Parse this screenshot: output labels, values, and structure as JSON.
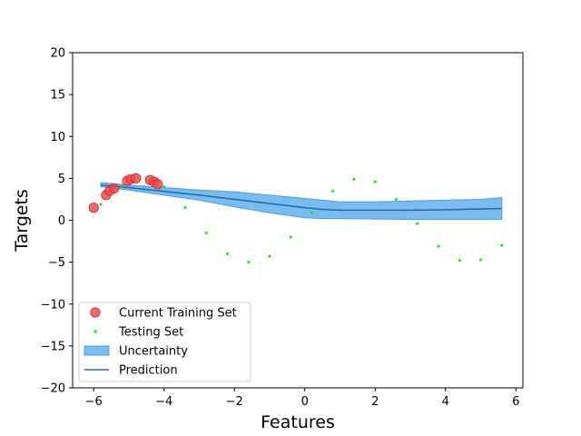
{
  "chart_data": {
    "type": "scatter",
    "xlabel": "Features",
    "ylabel": "Targets",
    "xlim": [
      -6.6,
      6.2
    ],
    "ylim": [
      -20,
      20
    ],
    "xticks": [
      -6,
      -4,
      -2,
      0,
      2,
      4,
      6
    ],
    "yticks": [
      -20,
      -15,
      -10,
      -5,
      0,
      5,
      10,
      15,
      20
    ],
    "xtick_labels": [
      "−6",
      "−4",
      "−2",
      "0",
      "2",
      "4",
      "6"
    ],
    "ytick_labels": [
      "−20",
      "−15",
      "−10",
      "−5",
      "0",
      "5",
      "10",
      "15",
      "20"
    ],
    "grid": false,
    "legend_position": "lower-left",
    "colors": {
      "training": "#e8474b",
      "testing": "#00ee00",
      "uncertainty": "#7bbcf0",
      "uncertainty_edge": "#4a9ee0",
      "prediction": "#1f6fb4"
    },
    "series": [
      {
        "name": "Current Training Set",
        "kind": "scatter",
        "points": [
          {
            "x": -6.0,
            "y": 1.5
          },
          {
            "x": -5.65,
            "y": 3.0
          },
          {
            "x": -5.55,
            "y": 3.5
          },
          {
            "x": -5.42,
            "y": 3.8
          },
          {
            "x": -5.05,
            "y": 4.7
          },
          {
            "x": -4.95,
            "y": 4.9
          },
          {
            "x": -4.8,
            "y": 5.0
          },
          {
            "x": -4.4,
            "y": 4.8
          },
          {
            "x": -4.28,
            "y": 4.6
          },
          {
            "x": -4.18,
            "y": 4.3
          }
        ]
      },
      {
        "name": "Testing Set",
        "kind": "scatter",
        "points": [
          {
            "x": -5.8,
            "y": 1.9
          },
          {
            "x": -5.2,
            "y": 4.1
          },
          {
            "x": -4.0,
            "y": 4.0
          },
          {
            "x": -3.4,
            "y": 1.5
          },
          {
            "x": -2.8,
            "y": -1.5
          },
          {
            "x": -2.2,
            "y": -4.0
          },
          {
            "x": -1.6,
            "y": -5.0
          },
          {
            "x": -1.0,
            "y": -4.3
          },
          {
            "x": -0.4,
            "y": -2.0
          },
          {
            "x": 0.2,
            "y": 0.9
          },
          {
            "x": 0.8,
            "y": 3.5
          },
          {
            "x": 1.4,
            "y": 4.9
          },
          {
            "x": 2.0,
            "y": 4.6
          },
          {
            "x": 2.6,
            "y": 2.5
          },
          {
            "x": 3.2,
            "y": -0.4
          },
          {
            "x": 3.8,
            "y": -3.1
          },
          {
            "x": 4.4,
            "y": -4.8
          },
          {
            "x": 5.0,
            "y": -4.7
          },
          {
            "x": 5.6,
            "y": -3.0
          }
        ]
      },
      {
        "name": "Prediction",
        "kind": "line",
        "points": [
          {
            "x": -5.8,
            "y": 4.2
          },
          {
            "x": -5.0,
            "y": 3.9
          },
          {
            "x": -4.0,
            "y": 3.45
          },
          {
            "x": -3.0,
            "y": 3.0
          },
          {
            "x": -2.0,
            "y": 2.5
          },
          {
            "x": -1.0,
            "y": 2.0
          },
          {
            "x": 0.0,
            "y": 1.5
          },
          {
            "x": 0.5,
            "y": 1.3
          },
          {
            "x": 1.0,
            "y": 1.2
          },
          {
            "x": 2.0,
            "y": 1.2
          },
          {
            "x": 3.0,
            "y": 1.2
          },
          {
            "x": 4.0,
            "y": 1.25
          },
          {
            "x": 5.0,
            "y": 1.35
          },
          {
            "x": 5.6,
            "y": 1.4
          }
        ]
      },
      {
        "name": "Uncertainty",
        "kind": "band",
        "x": [
          -5.8,
          -5.0,
          -4.0,
          -3.0,
          -2.0,
          -1.0,
          0.0,
          0.5,
          1.0,
          2.0,
          3.0,
          4.0,
          5.0,
          5.6
        ],
        "lower": [
          4.0,
          3.6,
          3.0,
          2.4,
          1.6,
          0.9,
          0.3,
          0.2,
          0.2,
          0.15,
          0.1,
          0.1,
          0.1,
          0.1
        ],
        "upper": [
          4.5,
          4.2,
          3.9,
          3.6,
          3.4,
          3.0,
          2.6,
          2.4,
          2.2,
          2.2,
          2.3,
          2.4,
          2.5,
          2.7
        ]
      }
    ],
    "legend": [
      {
        "label": "Current Training Set",
        "kind": "marker"
      },
      {
        "label": "Testing Set",
        "kind": "dot"
      },
      {
        "label": "Uncertainty",
        "kind": "patch"
      },
      {
        "label": "Prediction",
        "kind": "line"
      }
    ]
  }
}
